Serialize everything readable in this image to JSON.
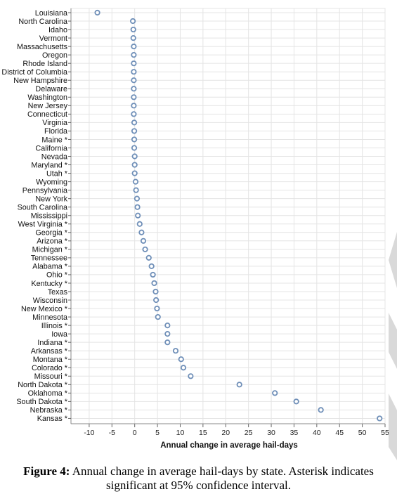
{
  "chart_data": {
    "type": "scatter",
    "xlabel": "Annual change in average hail-days",
    "xlim": [
      -14,
      55
    ],
    "xticks": [
      -10,
      -5,
      0,
      5,
      10,
      15,
      20,
      25,
      30,
      35,
      40,
      45,
      50,
      55
    ],
    "grid": true,
    "marker_color": "#6f8fb8",
    "points": [
      {
        "label": "Louisiana",
        "x": -8.2
      },
      {
        "label": "North Carolina",
        "x": -0.4
      },
      {
        "label": "Idaho",
        "x": -0.3
      },
      {
        "label": "Vermont",
        "x": -0.3
      },
      {
        "label": "Massachusetts",
        "x": -0.2
      },
      {
        "label": "Oregon",
        "x": -0.2
      },
      {
        "label": "Rhode Island",
        "x": -0.2
      },
      {
        "label": "District of Columbia",
        "x": -0.2
      },
      {
        "label": "New Hampshire",
        "x": -0.2
      },
      {
        "label": "Delaware",
        "x": -0.2
      },
      {
        "label": "Washington",
        "x": -0.2
      },
      {
        "label": "New Jersey",
        "x": -0.2
      },
      {
        "label": "Connecticut",
        "x": -0.2
      },
      {
        "label": "Virginia",
        "x": -0.1
      },
      {
        "label": "Florida",
        "x": -0.1
      },
      {
        "label": "Maine *",
        "x": -0.1
      },
      {
        "label": "California",
        "x": -0.1
      },
      {
        "label": "Nevada",
        "x": 0.0
      },
      {
        "label": "Maryland *",
        "x": 0.0
      },
      {
        "label": "Utah *",
        "x": 0.0
      },
      {
        "label": "Wyoming",
        "x": 0.2
      },
      {
        "label": "Pennsylvania",
        "x": 0.3
      },
      {
        "label": "New York",
        "x": 0.5
      },
      {
        "label": "South Carolina",
        "x": 0.6
      },
      {
        "label": "Mississippi",
        "x": 0.7
      },
      {
        "label": "West Virginia *",
        "x": 1.1
      },
      {
        "label": "Georgia *",
        "x": 1.5
      },
      {
        "label": "Arizona *",
        "x": 1.9
      },
      {
        "label": "Michigan *",
        "x": 2.3
      },
      {
        "label": "Tennessee",
        "x": 3.1
      },
      {
        "label": "Alabama *",
        "x": 3.7
      },
      {
        "label": "Ohio *",
        "x": 4.0
      },
      {
        "label": "Kentucky *",
        "x": 4.3
      },
      {
        "label": "Texas",
        "x": 4.6
      },
      {
        "label": "Wisconsin",
        "x": 4.7
      },
      {
        "label": "New Mexico *",
        "x": 4.9
      },
      {
        "label": "Minnesota",
        "x": 5.1
      },
      {
        "label": "Illinois *",
        "x": 7.2
      },
      {
        "label": "Iowa",
        "x": 7.2
      },
      {
        "label": "Indiana *",
        "x": 7.2
      },
      {
        "label": "Arkansas *",
        "x": 9.0
      },
      {
        "label": "Montana *",
        "x": 10.2
      },
      {
        "label": "Colorado *",
        "x": 10.7
      },
      {
        "label": "Missouri *",
        "x": 12.3
      },
      {
        "label": "North Dakota *",
        "x": 23.0
      },
      {
        "label": "Oklahoma *",
        "x": 30.8
      },
      {
        "label": "South Dakota *",
        "x": 35.5
      },
      {
        "label": "Nebraska *",
        "x": 40.9
      },
      {
        "label": "Kansas *",
        "x": 53.8
      }
    ]
  },
  "caption": {
    "label": "Figure 4:",
    "text": " Annual change in average hail-days by state. Asterisk indicates significant at 95% confidence interval."
  }
}
